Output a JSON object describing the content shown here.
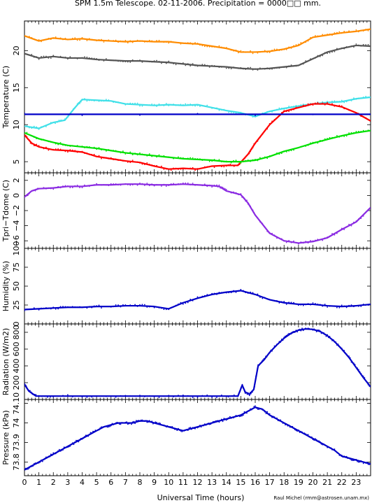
{
  "title": "SPM 1.5m Telescope. 02-11-2006. Precipitation = 0000□□ mm.",
  "xlabel": "Universal Time (hours)",
  "credit": "Raul Michel (rmm@astrosen.unam.mx)",
  "x_ticks": [
    "0",
    "1",
    "2",
    "3",
    "4",
    "5",
    "6",
    "7",
    "8",
    "9",
    "10",
    "11",
    "12",
    "13",
    "14",
    "15",
    "16",
    "17",
    "18",
    "19",
    "20",
    "21",
    "22",
    "23"
  ],
  "chart_data": [
    {
      "type": "scatter",
      "ylabel": "Temperature (C)",
      "ylim": [
        3.5,
        24
      ],
      "yticks": [
        5,
        10,
        15,
        20
      ],
      "xlim": [
        0,
        24
      ],
      "series": [
        {
          "color": "#ff8c00",
          "x": [
            0,
            1,
            2,
            3,
            4,
            5,
            6,
            7,
            8,
            9,
            10,
            11,
            12,
            13,
            14,
            15,
            16,
            17,
            18,
            19,
            20,
            21,
            22,
            23,
            24
          ],
          "y": [
            22.0,
            21.3,
            21.7,
            21.5,
            21.6,
            21.4,
            21.3,
            21.2,
            21.3,
            21.2,
            21.2,
            21.0,
            20.9,
            20.6,
            20.3,
            19.8,
            19.8,
            19.9,
            20.2,
            20.7,
            21.8,
            22.1,
            22.4,
            22.6,
            22.9
          ]
        },
        {
          "color": "#555555",
          "x": [
            0,
            1,
            2,
            3,
            4,
            5,
            6,
            7,
            8,
            9,
            10,
            11,
            12,
            13,
            14,
            15,
            16,
            17,
            18,
            19,
            20,
            21,
            22,
            23,
            24
          ],
          "y": [
            19.6,
            19.0,
            19.2,
            19.0,
            19.0,
            18.8,
            18.7,
            18.6,
            18.6,
            18.5,
            18.4,
            18.2,
            18.0,
            17.9,
            17.8,
            17.6,
            17.5,
            17.6,
            17.8,
            18.0,
            18.9,
            19.8,
            20.3,
            20.7,
            20.6
          ]
        },
        {
          "color": "#40e0e8",
          "x": [
            0,
            1,
            2,
            2.8,
            3.5,
            4,
            5,
            6,
            7,
            8,
            9,
            10,
            11,
            12,
            13,
            14,
            15,
            16,
            17,
            18,
            19,
            20,
            21,
            22,
            23,
            24
          ],
          "y": [
            9.8,
            9.5,
            10.3,
            10.6,
            12.3,
            13.4,
            13.3,
            13.2,
            12.8,
            12.7,
            12.6,
            12.7,
            12.6,
            12.7,
            12.3,
            11.9,
            11.6,
            11.1,
            11.8,
            12.2,
            12.5,
            12.8,
            13.0,
            13.1,
            13.5,
            13.7
          ]
        },
        {
          "color": "#ff0000",
          "x": [
            0,
            0.5,
            1,
            2,
            3,
            4,
            5,
            6,
            7,
            8,
            9,
            10,
            11,
            12,
            13,
            14,
            14.8,
            15.5,
            16,
            17,
            18,
            19,
            20,
            21,
            22,
            23,
            24
          ],
          "y": [
            8.6,
            7.5,
            7.0,
            6.6,
            6.5,
            6.3,
            5.7,
            5.4,
            5.1,
            4.9,
            4.4,
            4.0,
            4.1,
            4.0,
            4.4,
            4.5,
            4.5,
            6.0,
            7.5,
            10.0,
            11.8,
            12.3,
            12.8,
            12.8,
            12.4,
            11.6,
            10.5
          ]
        },
        {
          "color": "#00e000",
          "x": [
            0,
            1,
            2,
            3,
            4,
            5,
            6,
            7,
            8,
            9,
            10,
            11,
            12,
            13,
            14,
            15,
            16,
            17,
            18,
            19,
            20,
            21,
            22,
            23,
            24
          ],
          "y": [
            8.9,
            8.1,
            7.6,
            7.2,
            7.0,
            6.8,
            6.5,
            6.2,
            6.0,
            5.8,
            5.6,
            5.4,
            5.3,
            5.2,
            5.0,
            5.0,
            5.2,
            5.7,
            6.4,
            6.9,
            7.5,
            8.0,
            8.5,
            8.9,
            9.2
          ]
        },
        {
          "color": "#0000c8",
          "x": [
            0,
            24
          ],
          "y": [
            11.4,
            11.4
          ]
        }
      ]
    },
    {
      "type": "scatter",
      "ylabel": "Tpri−Tdome (C)",
      "ylim": [
        -7,
        3
      ],
      "yticks": [
        -6,
        -4,
        -2,
        0,
        2
      ],
      "ytick_labels": [
        "−6",
        "−4",
        "−2",
        "0",
        "2"
      ],
      "xlim": [
        0,
        24
      ],
      "series": [
        {
          "color": "#8a2be2",
          "x": [
            0,
            0.5,
            1,
            2,
            3,
            4,
            5,
            6,
            7,
            8,
            9,
            10,
            11,
            12,
            13,
            13.5,
            14,
            15,
            15.5,
            16,
            17,
            18,
            19,
            20,
            21,
            22,
            23,
            24
          ],
          "y": [
            -0.2,
            0.6,
            0.9,
            1.0,
            1.2,
            1.2,
            1.4,
            1.4,
            1.5,
            1.5,
            1.4,
            1.4,
            1.5,
            1.4,
            1.3,
            1.2,
            0.6,
            0.1,
            -1.0,
            -2.6,
            -5.0,
            -6.0,
            -6.3,
            -6.1,
            -5.6,
            -4.5,
            -3.5,
            -1.6
          ]
        }
      ]
    },
    {
      "type": "scatter",
      "ylabel": "Humidity (%)",
      "ylim": [
        0,
        100
      ],
      "yticks": [
        0,
        25,
        50,
        75,
        100
      ],
      "xlim": [
        0,
        24
      ],
      "series": [
        {
          "color": "#0000c8",
          "x": [
            0,
            1,
            2,
            3,
            4,
            5,
            6,
            7,
            8,
            9,
            10,
            11,
            12,
            13,
            14,
            15,
            16,
            17,
            18,
            19,
            20,
            21,
            22,
            23,
            24
          ],
          "y": [
            19,
            20,
            21,
            22,
            22,
            23,
            23,
            24,
            24,
            23,
            20,
            28,
            34,
            39,
            42,
            44,
            39,
            32,
            28,
            26,
            26,
            24,
            23,
            24,
            26
          ]
        }
      ]
    },
    {
      "type": "scatter",
      "ylabel": "Radiation (W/m2)",
      "ylim": [
        0,
        900
      ],
      "yticks": [
        200,
        400,
        600,
        800
      ],
      "xlim": [
        0,
        24
      ],
      "series": [
        {
          "color": "#0000c8",
          "x": [
            0,
            0.3,
            0.8,
            2,
            4,
            6,
            8,
            10,
            12,
            14,
            14.8,
            15.1,
            15.3,
            15.6,
            15.9,
            16.2,
            16.6,
            17,
            17.5,
            18,
            18.5,
            19,
            19.5,
            20,
            20.5,
            21,
            21.5,
            22,
            22.5,
            23,
            23.5,
            24
          ],
          "y": [
            180,
            100,
            40,
            40,
            40,
            40,
            40,
            40,
            40,
            40,
            40,
            170,
            90,
            60,
            120,
            400,
            470,
            560,
            650,
            730,
            790,
            825,
            840,
            835,
            810,
            760,
            690,
            600,
            500,
            380,
            260,
            150
          ]
        }
      ]
    },
    {
      "type": "scatter",
      "ylabel": "Pressure (kPa)",
      "ylim": [
        73.73,
        74.12
      ],
      "yticks": [
        73.8,
        73.9,
        74.0,
        74.1
      ],
      "ytick_labels": [
        "73.8",
        "73.9",
        "74",
        "74.10"
      ],
      "xlim": [
        0,
        24
      ],
      "series": [
        {
          "color": "#0000c8",
          "x": [
            0,
            0.5,
            1,
            1.5,
            2,
            2.5,
            3,
            3.5,
            4,
            4.5,
            5,
            5.5,
            6,
            6.5,
            7,
            7.5,
            8,
            8.5,
            9,
            9.5,
            10,
            10.5,
            11,
            11.5,
            12,
            12.5,
            13,
            13.5,
            14,
            14.5,
            15,
            15.5,
            16,
            16.5,
            17,
            17.5,
            18,
            18.5,
            19,
            19.5,
            20,
            20.5,
            21,
            21.5,
            22,
            22.5,
            23,
            23.5,
            24
          ],
          "y": [
            73.76,
            73.78,
            73.8,
            73.82,
            73.84,
            73.86,
            73.88,
            73.9,
            73.92,
            73.94,
            73.96,
            73.98,
            73.99,
            74.0,
            74.0,
            74.0,
            74.01,
            74.01,
            74.0,
            73.99,
            73.98,
            73.97,
            73.96,
            73.97,
            73.98,
            73.99,
            74.0,
            74.01,
            74.02,
            74.03,
            74.04,
            74.06,
            74.08,
            74.07,
            74.04,
            74.02,
            74.0,
            73.98,
            73.96,
            73.94,
            73.92,
            73.9,
            73.88,
            73.86,
            73.83,
            73.82,
            73.81,
            73.8,
            73.79
          ]
        }
      ]
    }
  ]
}
